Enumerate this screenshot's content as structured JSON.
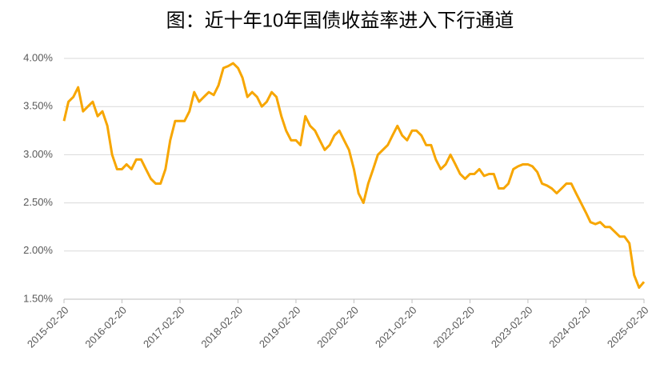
{
  "chart_data": {
    "type": "line",
    "title": "图：近十年10年国债收益率进入下行通道",
    "x": [
      "2015-02-20",
      "2015-03-20",
      "2015-04-20",
      "2015-05-20",
      "2015-06-20",
      "2015-07-20",
      "2015-08-20",
      "2015-09-20",
      "2015-10-20",
      "2015-11-20",
      "2015-12-20",
      "2016-01-20",
      "2016-02-20",
      "2016-03-20",
      "2016-04-20",
      "2016-05-20",
      "2016-06-20",
      "2016-07-20",
      "2016-08-20",
      "2016-09-20",
      "2016-10-20",
      "2016-11-20",
      "2016-12-20",
      "2017-01-20",
      "2017-02-20",
      "2017-03-20",
      "2017-04-20",
      "2017-05-20",
      "2017-06-20",
      "2017-07-20",
      "2017-08-20",
      "2017-09-20",
      "2017-10-20",
      "2017-11-20",
      "2017-12-20",
      "2018-01-20",
      "2018-02-20",
      "2018-03-20",
      "2018-04-20",
      "2018-05-20",
      "2018-06-20",
      "2018-07-20",
      "2018-08-20",
      "2018-09-20",
      "2018-10-20",
      "2018-11-20",
      "2018-12-20",
      "2019-01-20",
      "2019-02-20",
      "2019-03-20",
      "2019-04-20",
      "2019-05-20",
      "2019-06-20",
      "2019-07-20",
      "2019-08-20",
      "2019-09-20",
      "2019-10-20",
      "2019-11-20",
      "2019-12-20",
      "2020-01-20",
      "2020-02-20",
      "2020-03-20",
      "2020-04-20",
      "2020-05-20",
      "2020-06-20",
      "2020-07-20",
      "2020-08-20",
      "2020-09-20",
      "2020-10-20",
      "2020-11-20",
      "2020-12-20",
      "2021-01-20",
      "2021-02-20",
      "2021-03-20",
      "2021-04-20",
      "2021-05-20",
      "2021-06-20",
      "2021-07-20",
      "2021-08-20",
      "2021-09-20",
      "2021-10-20",
      "2021-11-20",
      "2021-12-20",
      "2022-01-20",
      "2022-02-20",
      "2022-03-20",
      "2022-04-20",
      "2022-05-20",
      "2022-06-20",
      "2022-07-20",
      "2022-08-20",
      "2022-09-20",
      "2022-10-20",
      "2022-11-20",
      "2022-12-20",
      "2023-01-20",
      "2023-02-20",
      "2023-03-20",
      "2023-04-20",
      "2023-05-20",
      "2023-06-20",
      "2023-07-20",
      "2023-08-20",
      "2023-09-20",
      "2023-10-20",
      "2023-11-20",
      "2023-12-20",
      "2024-01-20",
      "2024-02-20",
      "2024-03-20",
      "2024-04-20",
      "2024-05-20",
      "2024-06-20",
      "2024-07-20",
      "2024-08-20",
      "2024-09-20",
      "2024-10-20",
      "2024-11-20",
      "2024-12-20",
      "2025-01-20",
      "2025-02-20"
    ],
    "series": [
      {
        "color": "#f7a600",
        "values": [
          3.35,
          3.55,
          3.6,
          3.7,
          3.45,
          3.5,
          3.55,
          3.4,
          3.45,
          3.3,
          3.0,
          2.85,
          2.85,
          2.9,
          2.85,
          2.95,
          2.95,
          2.85,
          2.75,
          2.7,
          2.7,
          2.85,
          3.15,
          3.35,
          3.35,
          3.35,
          3.45,
          3.65,
          3.55,
          3.6,
          3.65,
          3.62,
          3.72,
          3.9,
          3.92,
          3.95,
          3.9,
          3.8,
          3.6,
          3.65,
          3.6,
          3.5,
          3.55,
          3.65,
          3.6,
          3.4,
          3.25,
          3.15,
          3.15,
          3.1,
          3.4,
          3.3,
          3.25,
          3.15,
          3.05,
          3.1,
          3.2,
          3.25,
          3.15,
          3.05,
          2.85,
          2.6,
          2.5,
          2.7,
          2.85,
          3.0,
          3.05,
          3.1,
          3.2,
          3.3,
          3.2,
          3.15,
          3.25,
          3.25,
          3.2,
          3.1,
          3.1,
          2.95,
          2.85,
          2.9,
          3.0,
          2.9,
          2.8,
          2.75,
          2.8,
          2.8,
          2.85,
          2.78,
          2.8,
          2.8,
          2.65,
          2.65,
          2.7,
          2.85,
          2.88,
          2.9,
          2.9,
          2.88,
          2.82,
          2.7,
          2.68,
          2.65,
          2.6,
          2.65,
          2.7,
          2.7,
          2.6,
          2.5,
          2.4,
          2.3,
          2.28,
          2.3,
          2.25,
          2.25,
          2.2,
          2.15,
          2.15,
          2.08,
          1.75,
          1.62,
          1.68
        ]
      }
    ],
    "ylim": [
      1.5,
      4.0
    ],
    "yticks": [
      {
        "value": 1.5,
        "label": "1.50%"
      },
      {
        "value": 2.0,
        "label": "2.00%"
      },
      {
        "value": 2.5,
        "label": "2.50%"
      },
      {
        "value": 3.0,
        "label": "3.00%"
      },
      {
        "value": 3.5,
        "label": "3.50%"
      },
      {
        "value": 4.0,
        "label": "4.00%"
      }
    ],
    "xlim": [
      "2015-02-20",
      "2025-02-20"
    ],
    "xticks": [
      "2015-02-20",
      "2016-02-20",
      "2017-02-20",
      "2018-02-20",
      "2019-02-20",
      "2020-02-20",
      "2021-02-20",
      "2022-02-20",
      "2023-02-20",
      "2024-02-20",
      "2025-02-20"
    ],
    "grid": true
  }
}
